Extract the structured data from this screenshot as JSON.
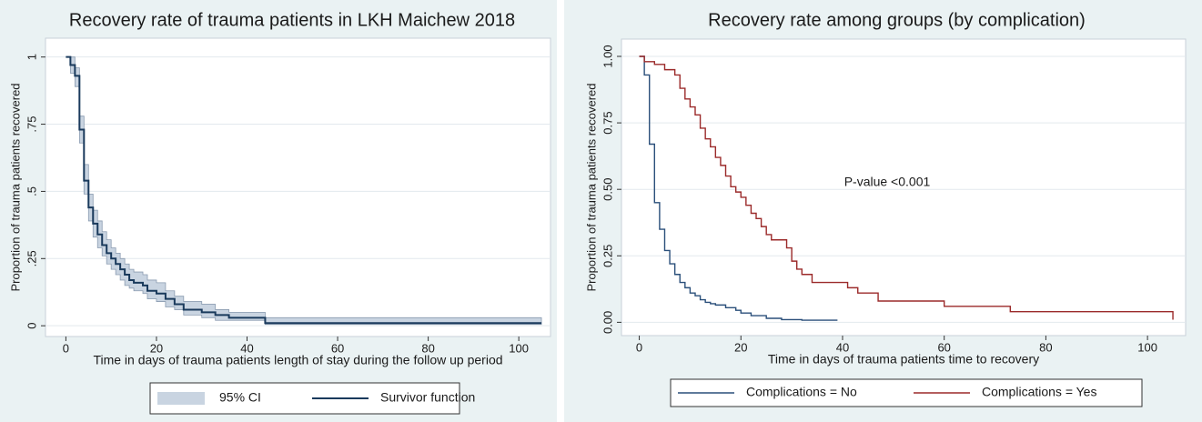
{
  "chart_data": [
    {
      "type": "line",
      "drawstyle": "steps-post",
      "title": "Recovery rate of trauma patients in LKH Maichew 2018",
      "x_label": "Time in days of trauma patients length of stay during the follow up period",
      "y_label": "Proportion of trauma patients recovered",
      "x": [
        0,
        1,
        2,
        3,
        4,
        5,
        6,
        7,
        8,
        9,
        10,
        11,
        12,
        13,
        14,
        15,
        17,
        18,
        20,
        22,
        24,
        26,
        30,
        33,
        36,
        44,
        105
      ],
      "series": [
        {
          "name": "95% CI",
          "color": "#c9d4e1",
          "upper": [
            1,
            1,
            0.96,
            0.78,
            0.6,
            0.49,
            0.43,
            0.39,
            0.35,
            0.32,
            0.29,
            0.27,
            0.25,
            0.23,
            0.21,
            0.2,
            0.19,
            0.17,
            0.16,
            0.13,
            0.11,
            0.09,
            0.08,
            0.06,
            0.05,
            0.03,
            0.02
          ],
          "lower": [
            1,
            0.94,
            0.89,
            0.68,
            0.49,
            0.39,
            0.33,
            0.29,
            0.26,
            0.23,
            0.21,
            0.19,
            0.17,
            0.15,
            0.14,
            0.13,
            0.12,
            0.1,
            0.09,
            0.07,
            0.06,
            0.04,
            0.03,
            0.02,
            0.02,
            0.005,
            0.005
          ]
        },
        {
          "name": "Survivor function",
          "color": "#1a3a5c",
          "values": [
            1,
            0.97,
            0.93,
            0.73,
            0.54,
            0.44,
            0.38,
            0.34,
            0.3,
            0.27,
            0.25,
            0.23,
            0.21,
            0.19,
            0.17,
            0.16,
            0.15,
            0.13,
            0.12,
            0.1,
            0.08,
            0.06,
            0.05,
            0.04,
            0.03,
            0.01,
            0.01
          ]
        }
      ],
      "xlim": [
        -4.5,
        107
      ],
      "xticks": [
        0,
        20,
        40,
        60,
        80,
        100
      ],
      "ylim": [
        -0.04,
        1.07
      ],
      "yticks": [
        0,
        {
          "value": 0.25,
          "label": ".25"
        },
        {
          "value": 0.5,
          "label": ".5"
        },
        {
          "value": 0.75,
          "label": ".75"
        },
        1
      ],
      "grid": true
    },
    {
      "type": "line",
      "drawstyle": "steps-post",
      "title": "Recovery rate among groups (by complication)",
      "x_label": "Time in days of trauma patients time to recovery",
      "y_label": "Proportion of trauma patients recovered",
      "annotation": "P-value <0.001",
      "annotation_color": "#2222dd",
      "series": [
        {
          "name": "Complications = No",
          "color": "#2a4f7a",
          "x": [
            0,
            1,
            2,
            3,
            4,
            5,
            6,
            7,
            8,
            9,
            10,
            11,
            12,
            13,
            14,
            15,
            17,
            19,
            20,
            22,
            25,
            28,
            32,
            39
          ],
          "values": [
            1,
            0.93,
            0.67,
            0.45,
            0.35,
            0.27,
            0.22,
            0.18,
            0.15,
            0.13,
            0.11,
            0.1,
            0.085,
            0.075,
            0.07,
            0.065,
            0.055,
            0.045,
            0.035,
            0.025,
            0.015,
            0.01,
            0.008,
            0.008
          ]
        },
        {
          "name": "Complications = Yes",
          "color": "#9b2a2a",
          "x": [
            0,
            1,
            3,
            5,
            7,
            8,
            9,
            10,
            11,
            12,
            13,
            14,
            15,
            16,
            17,
            18,
            19,
            20,
            21,
            22,
            23,
            24,
            25,
            26,
            28,
            29,
            30,
            31,
            32,
            34,
            38,
            41,
            43,
            47,
            60,
            73,
            105
          ],
          "values": [
            1,
            0.98,
            0.97,
            0.95,
            0.93,
            0.88,
            0.84,
            0.81,
            0.78,
            0.73,
            0.69,
            0.66,
            0.62,
            0.59,
            0.55,
            0.51,
            0.49,
            0.47,
            0.44,
            0.41,
            0.39,
            0.36,
            0.33,
            0.31,
            0.31,
            0.28,
            0.23,
            0.2,
            0.18,
            0.15,
            0.15,
            0.13,
            0.11,
            0.08,
            0.06,
            0.04,
            0.01
          ]
        }
      ],
      "xlim": [
        -3.5,
        107.5
      ],
      "xticks": [
        0,
        20,
        40,
        60,
        80,
        100
      ],
      "ylim": [
        -0.05,
        1.065
      ],
      "yticks": [
        {
          "value": 0,
          "label": "0.00"
        },
        {
          "value": 0.25,
          "label": "0.25"
        },
        {
          "value": 0.5,
          "label": "0.50"
        },
        {
          "value": 0.75,
          "label": "0.75"
        },
        {
          "value": 1,
          "label": "1.00"
        }
      ],
      "grid": true
    }
  ]
}
